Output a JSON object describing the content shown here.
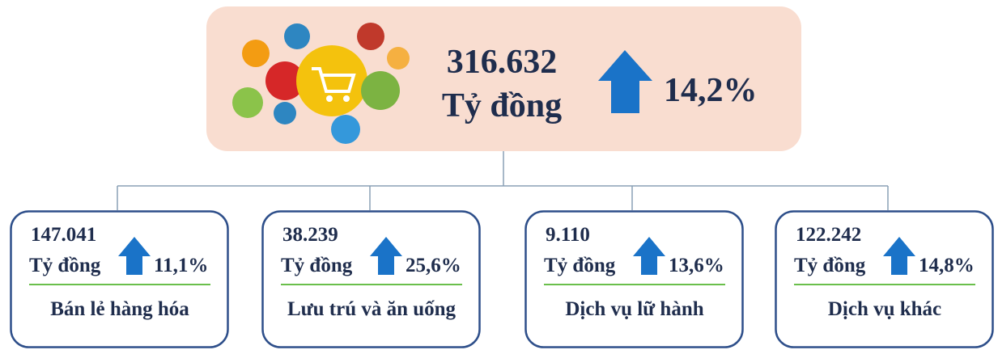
{
  "total": {
    "value": "316.632",
    "unit": "Tỷ đồng",
    "change": "14,2%"
  },
  "nodes": [
    {
      "value": "147.041",
      "unit": "Tỷ đồng",
      "change": "11,1%",
      "label": "Bán lẻ hàng hóa"
    },
    {
      "value": "38.239",
      "unit": "Tỷ đồng",
      "change": "25,6%",
      "label": "Lưu trú và ăn uống"
    },
    {
      "value": "9.110",
      "unit": "Tỷ đồng",
      "change": "13,6%",
      "label": "Dịch vụ lữ hành"
    },
    {
      "value": "122.242",
      "unit": "Tỷ đồng",
      "change": "14,8%",
      "label": "Dịch vụ khác"
    }
  ]
}
